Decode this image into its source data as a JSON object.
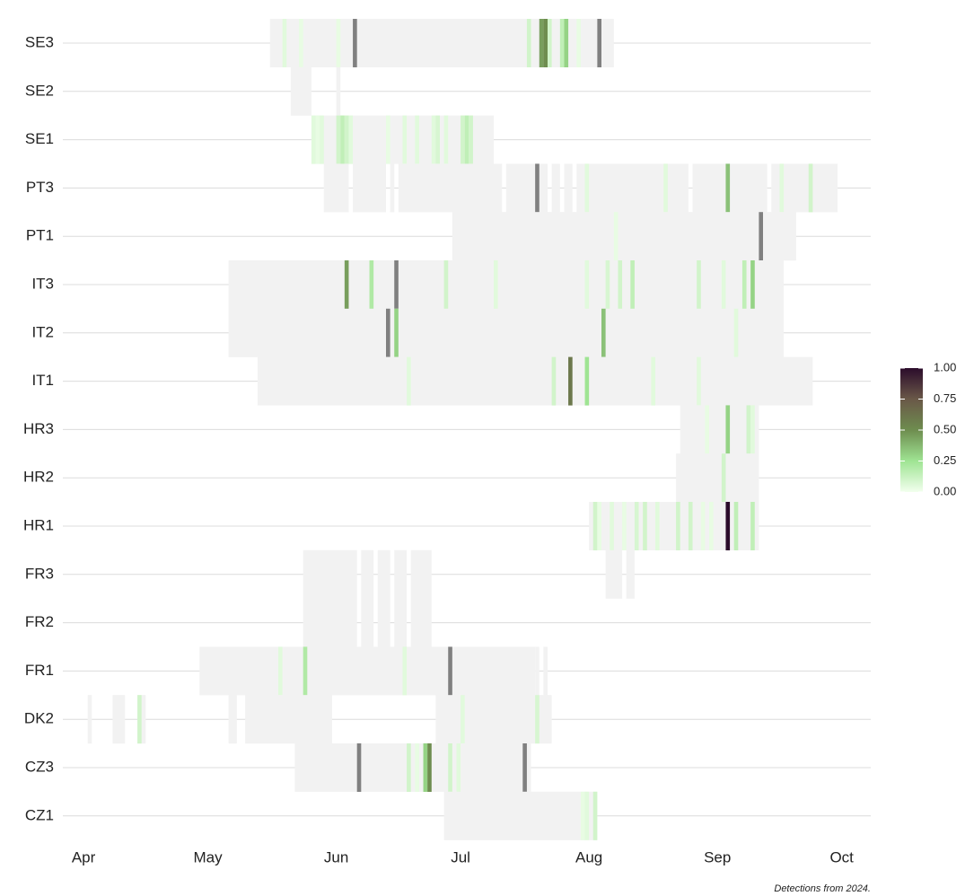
{
  "chart_data": {
    "type": "heatmap",
    "caption": "Detections from 2024.",
    "xlim": [
      87,
      282
    ],
    "xticks": [
      {
        "value": 92,
        "label": "Apr"
      },
      {
        "value": 122,
        "label": "May"
      },
      {
        "value": 153,
        "label": "Jun"
      },
      {
        "value": 183,
        "label": "Jul"
      },
      {
        "value": 214,
        "label": "Aug"
      },
      {
        "value": 245,
        "label": "Sep"
      },
      {
        "value": 275,
        "label": "Oct"
      }
    ],
    "sampled_color": "#f2f2f2",
    "gray_color": "#808080",
    "grid": true,
    "colorscale": [
      "#f2ffee",
      "#9fe493",
      "#6e8d4f",
      "#6a5848",
      "#2b0c2b"
    ],
    "clim": [
      0,
      1
    ],
    "cticks": [
      {
        "value": 0,
        "label": "0.00"
      },
      {
        "value": 0.25,
        "label": "0.25"
      },
      {
        "value": 0.5,
        "label": "0.50"
      },
      {
        "value": 0.75,
        "label": "0.75"
      },
      {
        "value": 1,
        "label": "1.00"
      }
    ],
    "rows": [
      {
        "name": "SE3",
        "sampled": [
          [
            137,
            219
          ]
        ],
        "x": [
          140,
          144,
          153,
          199,
          202,
          203,
          204,
          207,
          208,
          211
        ],
        "values": [
          0.05,
          0.03,
          0.03,
          0.1,
          0.45,
          0.5,
          0.1,
          0.15,
          0.3,
          0.03
        ],
        "gray": [
          157,
          216
        ]
      },
      {
        "name": "SE2",
        "sampled": [
          [
            142,
            146
          ],
          [
            153,
            153
          ]
        ],
        "x": [],
        "values": [],
        "gray": []
      },
      {
        "name": "SE1",
        "sampled": [
          [
            147,
            190
          ]
        ],
        "x": [
          147,
          148,
          149,
          153,
          154,
          155,
          156,
          165,
          169,
          172,
          176,
          177,
          179,
          183,
          184,
          185
        ],
        "values": [
          0.05,
          0.03,
          0.05,
          0.1,
          0.15,
          0.1,
          0.05,
          0.03,
          0.05,
          0.05,
          0.05,
          0.08,
          0.05,
          0.1,
          0.15,
          0.1
        ],
        "gray": []
      },
      {
        "name": "PT3",
        "sampled": [
          [
            150,
            155
          ],
          [
            157,
            164
          ],
          [
            166,
            166
          ],
          [
            168,
            192
          ],
          [
            194,
            203
          ],
          [
            205,
            206
          ],
          [
            208,
            209
          ],
          [
            211,
            237
          ],
          [
            239,
            256
          ],
          [
            258,
            273
          ]
        ],
        "x": [
          213,
          232,
          247,
          260,
          267
        ],
        "values": [
          0.05,
          0.05,
          0.35,
          0.05,
          0.1
        ],
        "gray": [
          201
        ]
      },
      {
        "name": "PT1",
        "sampled": [
          [
            181,
            263
          ]
        ],
        "x": [
          220
        ],
        "values": [
          0.03
        ],
        "gray": [
          255
        ]
      },
      {
        "name": "IT3",
        "sampled": [
          [
            127,
            260
          ]
        ],
        "x": [
          155,
          161,
          179,
          191,
          213,
          218,
          221,
          224,
          240,
          246,
          251,
          253
        ],
        "values": [
          0.45,
          0.2,
          0.1,
          0.05,
          0.05,
          0.08,
          0.1,
          0.15,
          0.1,
          0.05,
          0.15,
          0.3
        ],
        "gray": [
          167
        ]
      },
      {
        "name": "IT2",
        "sampled": [
          [
            127,
            260
          ]
        ],
        "x": [
          167,
          217,
          249
        ],
        "values": [
          0.3,
          0.35,
          0.05
        ],
        "gray": [
          165
        ]
      },
      {
        "name": "IT1",
        "sampled": [
          [
            134,
            267
          ]
        ],
        "x": [
          170,
          205,
          209,
          213,
          229,
          240
        ],
        "values": [
          0.05,
          0.1,
          0.6,
          0.25,
          0.05,
          0.05
        ],
        "gray": []
      },
      {
        "name": "HR3",
        "sampled": [
          [
            236,
            254
          ]
        ],
        "x": [
          242,
          247,
          252,
          253
        ],
        "values": [
          0.03,
          0.3,
          0.1,
          0.05
        ],
        "gray": []
      },
      {
        "name": "HR2",
        "sampled": [
          [
            235,
            254
          ]
        ],
        "x": [
          246
        ],
        "values": [
          0.1
        ],
        "gray": []
      },
      {
        "name": "HR1",
        "sampled": [
          [
            214,
            254
          ]
        ],
        "x": [
          215,
          216,
          219,
          222,
          225,
          227,
          230,
          235,
          238,
          241,
          243,
          247,
          249,
          253
        ],
        "values": [
          0.1,
          0.03,
          0.05,
          0.03,
          0.08,
          0.1,
          0.05,
          0.1,
          0.1,
          0.03,
          0.03,
          1,
          0.15,
          0.15
        ],
        "gray": []
      },
      {
        "name": "FR3",
        "sampled": [
          [
            145,
            157
          ],
          [
            159,
            161
          ],
          [
            163,
            165
          ],
          [
            167,
            169
          ],
          [
            171,
            175
          ],
          [
            218,
            221
          ],
          [
            223,
            224
          ]
        ],
        "x": [],
        "values": [],
        "gray": []
      },
      {
        "name": "FR2",
        "sampled": [
          [
            145,
            157
          ],
          [
            159,
            161
          ],
          [
            163,
            165
          ],
          [
            167,
            169
          ],
          [
            171,
            175
          ]
        ],
        "x": [],
        "values": [],
        "gray": []
      },
      {
        "name": "FR1",
        "sampled": [
          [
            120,
            200
          ],
          [
            201,
            201
          ],
          [
            203,
            203
          ]
        ],
        "x": [
          139,
          145,
          169
        ],
        "values": [
          0.05,
          0.2,
          0.05
        ],
        "gray": [
          180
        ]
      },
      {
        "name": "DK2",
        "sampled": [
          [
            93,
            93
          ],
          [
            99,
            101
          ],
          [
            105,
            106
          ],
          [
            127,
            128
          ],
          [
            131,
            151
          ],
          [
            177,
            204
          ]
        ],
        "x": [
          105,
          183,
          201
        ],
        "values": [
          0.1,
          0.05,
          0.08
        ],
        "gray": []
      },
      {
        "name": "CZ3",
        "sampled": [
          [
            143,
            199
          ]
        ],
        "x": [
          170,
          172,
          174,
          175,
          180,
          182
        ],
        "values": [
          0.1,
          0.03,
          0.3,
          0.5,
          0.1,
          0.05
        ],
        "gray": [
          158,
          198
        ]
      },
      {
        "name": "CZ1",
        "sampled": [
          [
            179,
            215
          ]
        ],
        "x": [
          212,
          213,
          215
        ],
        "values": [
          0.03,
          0.05,
          0.1
        ],
        "gray": []
      }
    ]
  }
}
